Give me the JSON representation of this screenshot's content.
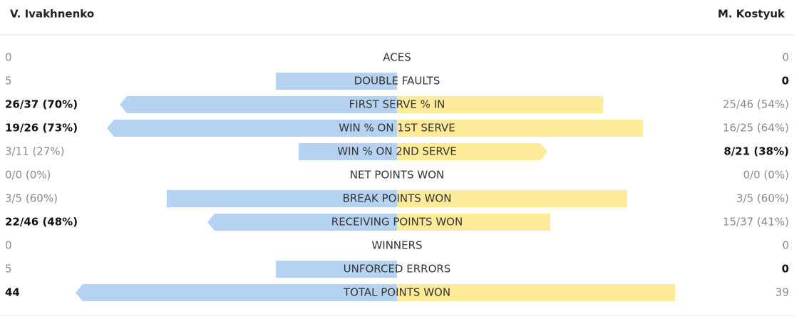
{
  "header": {
    "left_player": "V. Ivakhnenko",
    "right_player": "M. Kostyuk"
  },
  "rows": [
    {
      "label": "ACES",
      "left": "0",
      "right": "0"
    },
    {
      "label": "DOUBLE FAULTS",
      "left": "5",
      "right": "0"
    },
    {
      "label": "FIRST SERVE % IN",
      "left": "26/37 (70%)",
      "right": "25/46 (54%)"
    },
    {
      "label": "WIN % ON 1ST SERVE",
      "left": "19/26 (73%)",
      "right": "16/25 (64%)"
    },
    {
      "label": "WIN % ON 2ND SERVE",
      "left": "3/11 (27%)",
      "right": "8/21 (38%)"
    },
    {
      "label": "NET POINTS WON",
      "left": "0/0 (0%)",
      "right": "0/0 (0%)"
    },
    {
      "label": "BREAK POINTS WON",
      "left": "3/5 (60%)",
      "right": "3/5 (60%)"
    },
    {
      "label": "RECEIVING POINTS WON",
      "left": "22/46 (48%)",
      "right": "15/37 (41%)"
    },
    {
      "label": "WINNERS",
      "left": "0",
      "right": "0"
    },
    {
      "label": "UNFORCED ERRORS",
      "left": "5",
      "right": "0"
    },
    {
      "label": "TOTAL POINTS WON",
      "left": "44",
      "right": "39"
    }
  ]
}
